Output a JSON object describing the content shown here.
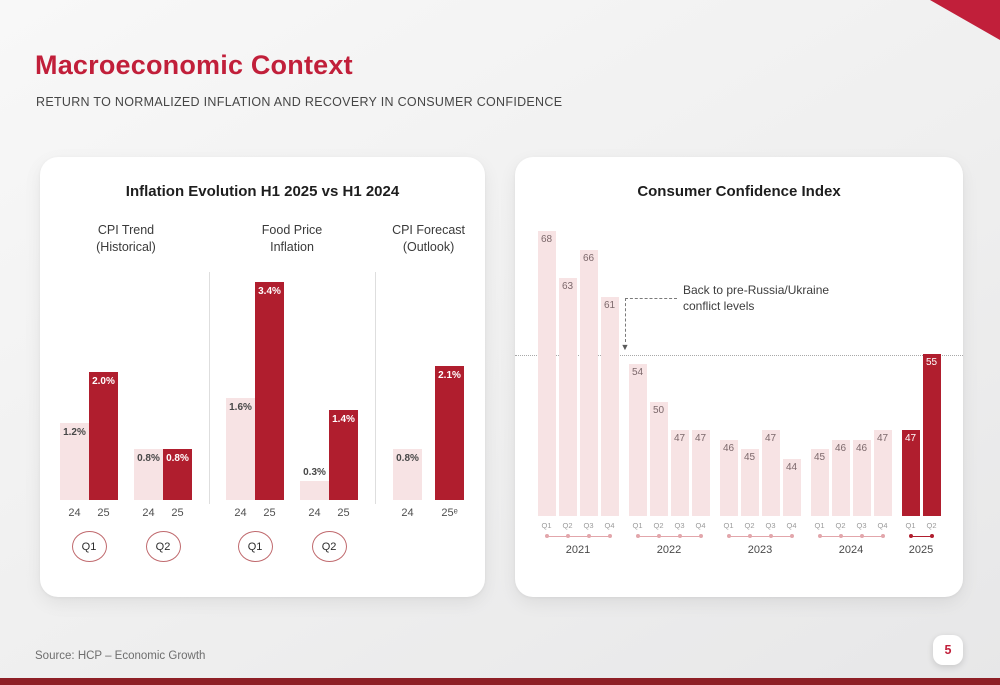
{
  "header": {
    "title": "Macroeconomic Context",
    "subtitle": "RETURN TO NORMALIZED INFLATION AND RECOVERY IN CONSUMER CONFIDENCE"
  },
  "footer": {
    "source": "Source: HCP – Economic Growth",
    "page_number": "5"
  },
  "colors": {
    "accent": "#c11f3a",
    "bar_dark": "#b01e2e",
    "bar_light": "#f7e3e4",
    "bottom_strip": "#8e1f26",
    "timeline_light": "#e2a6ab"
  },
  "chart_data": [
    {
      "type": "bar",
      "title": "Inflation Evolution H1 2025 vs H1 2024",
      "unit": "percent",
      "ylim": [
        0,
        3.5
      ],
      "groups": [
        {
          "label_lines": [
            "CPI Trend",
            "(Historical)"
          ],
          "pairs": [
            {
              "quarter": "Q1",
              "bars": [
                {
                  "x": "24",
                  "value": 1.2,
                  "label": "1.2%",
                  "tone": "light"
                },
                {
                  "x": "25",
                  "value": 2.0,
                  "label": "2.0%",
                  "tone": "dark"
                }
              ]
            },
            {
              "quarter": "Q2",
              "bars": [
                {
                  "x": "24",
                  "value": 0.8,
                  "label": "0.8%",
                  "tone": "light"
                },
                {
                  "x": "25",
                  "value": 0.8,
                  "label": "0.8%",
                  "tone": "dark"
                }
              ]
            }
          ]
        },
        {
          "label_lines": [
            "Food Price",
            "Inflation"
          ],
          "pairs": [
            {
              "quarter": "Q1",
              "bars": [
                {
                  "x": "24",
                  "value": 1.6,
                  "label": "1.6%",
                  "tone": "light"
                },
                {
                  "x": "25",
                  "value": 3.4,
                  "label": "3.4%",
                  "tone": "dark"
                }
              ]
            },
            {
              "quarter": "Q2",
              "bars": [
                {
                  "x": "24",
                  "value": 0.3,
                  "label": "0.3%",
                  "tone": "light"
                },
                {
                  "x": "25",
                  "value": 1.4,
                  "label": "1.4%",
                  "tone": "dark"
                }
              ]
            }
          ]
        },
        {
          "label_lines": [
            "CPI Forecast",
            "(Outlook)"
          ],
          "pairs": [
            {
              "quarter": null,
              "spread": true,
              "bars": [
                {
                  "x": "24",
                  "value": 0.8,
                  "label": "0.8%",
                  "tone": "light"
                },
                {
                  "x": "25ᵉ",
                  "value": 2.1,
                  "label": "2.1%",
                  "tone": "dark"
                }
              ]
            }
          ]
        }
      ]
    },
    {
      "type": "bar",
      "title": "Consumer Confidence Index",
      "annotation": {
        "line1": "Back to pre-Russia/Ukraine",
        "line2": "conflict levels"
      },
      "reference_level": 55,
      "ylim": [
        38,
        70
      ],
      "years": [
        {
          "year": "2021",
          "quarters": [
            "Q1",
            "Q2",
            "Q3",
            "Q4"
          ],
          "values": [
            68,
            63,
            66,
            61
          ],
          "tone": "light"
        },
        {
          "year": "2022",
          "quarters": [
            "Q1",
            "Q2",
            "Q3",
            "Q4"
          ],
          "values": [
            54,
            50,
            47,
            47
          ],
          "tone": "light"
        },
        {
          "year": "2023",
          "quarters": [
            "Q1",
            "Q2",
            "Q3",
            "Q4"
          ],
          "values": [
            46,
            45,
            47,
            44
          ],
          "tone": "light"
        },
        {
          "year": "2024",
          "quarters": [
            "Q1",
            "Q2",
            "Q3",
            "Q4"
          ],
          "values": [
            45,
            46,
            46,
            47
          ],
          "tone": "light"
        },
        {
          "year": "2025",
          "quarters": [
            "Q1",
            "Q2"
          ],
          "values": [
            47,
            55
          ],
          "tone": "dark"
        }
      ]
    }
  ]
}
